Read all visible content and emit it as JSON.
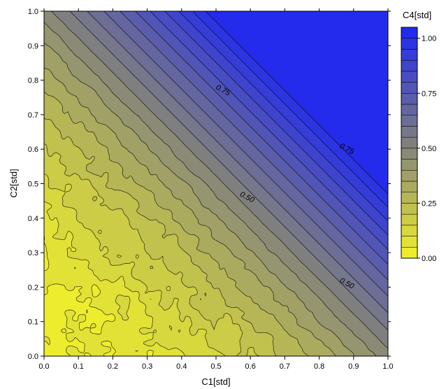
{
  "chart_data": {
    "type": "contour",
    "title": "",
    "xlabel": "C1[std]",
    "ylabel": "C2[std]",
    "xlim": [
      0,
      1
    ],
    "ylim": [
      0,
      1
    ],
    "x_ticks": [
      "0.0",
      "0.1",
      "0.2",
      "0.3",
      "0.4",
      "0.5",
      "0.6",
      "0.7",
      "0.8",
      "0.9",
      "1.0"
    ],
    "y_ticks": [
      "0.0",
      "0.1",
      "0.2",
      "0.3",
      "0.4",
      "0.5",
      "0.6",
      "0.7",
      "0.8",
      "0.9",
      "1.0"
    ],
    "z_label": "C4[std]",
    "z_range": [
      0,
      1.05
    ],
    "z_ticks": [
      "0.00",
      "0.25",
      "0.50",
      "0.75",
      "1.00"
    ],
    "contour_interval": 0.05,
    "color_low": "#f2f22a",
    "color_mid": "#7f7f7f",
    "color_high": "#1f27f2",
    "contour_labels": [
      {
        "text": "0.75",
        "x": 0.52,
        "y": 0.77
      },
      {
        "text": "0.75",
        "x": 0.88,
        "y": 0.6
      },
      {
        "text": "0.50",
        "x": 0.59,
        "y": 0.46
      },
      {
        "text": "0.50",
        "x": 0.88,
        "y": 0.21
      }
    ],
    "grid": false,
    "legend": "right colorbar"
  }
}
